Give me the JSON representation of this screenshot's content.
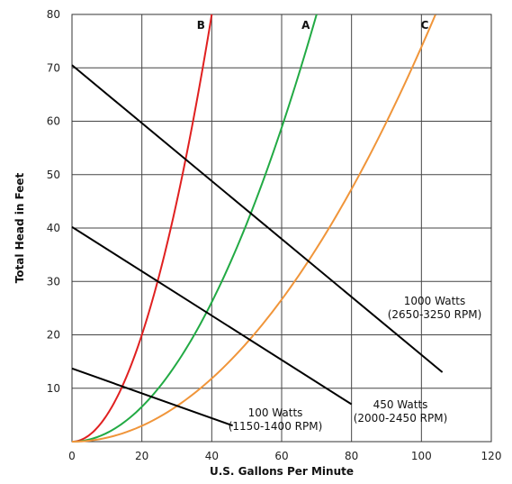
{
  "chart_data": {
    "type": "line",
    "xlabel": "U.S. Gallons Per Minute",
    "ylabel": "Total Head in Feet",
    "xlim": [
      0,
      120
    ],
    "ylim": [
      0,
      80
    ],
    "x_ticks": [
      0,
      20,
      40,
      60,
      80,
      100,
      120
    ],
    "y_ticks": [
      10,
      20,
      30,
      40,
      50,
      60,
      70,
      80
    ],
    "grid": true,
    "system_curves": [
      {
        "name": "B",
        "color": "#e02020",
        "a": 0.05,
        "x_max": 40
      },
      {
        "name": "A",
        "color": "#22aa44",
        "a": 0.01633,
        "x_max": 70
      },
      {
        "name": "C",
        "color": "#f0953a",
        "a": 0.00739,
        "x_max": 104
      }
    ],
    "pump_curves": [
      {
        "name": "100 Watts",
        "rpm": "(1150-1400 RPM)",
        "color": "#000000",
        "x": [
          0,
          46
        ],
        "y": [
          13.7,
          3
        ]
      },
      {
        "name": "450 Watts",
        "rpm": "(2000-2450 RPM)",
        "color": "#000000",
        "x": [
          0,
          80
        ],
        "y": [
          40.2,
          7
        ]
      },
      {
        "name": "1000 Watts",
        "rpm": "(2650-3250 RPM)",
        "color": "#000000",
        "x": [
          0,
          106
        ],
        "y": [
          70.5,
          13
        ]
      }
    ]
  }
}
